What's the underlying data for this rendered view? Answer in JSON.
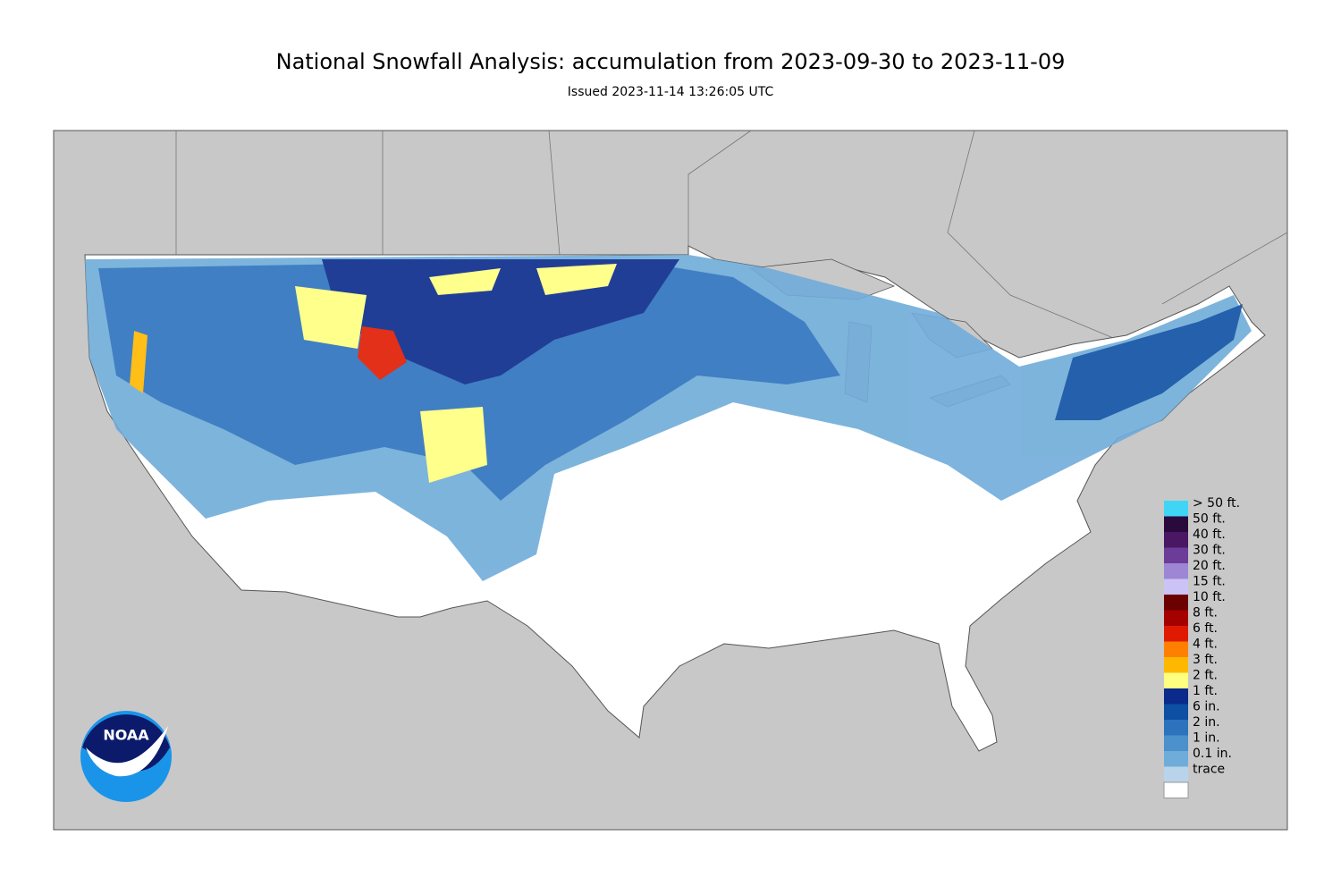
{
  "header": {
    "title": "National Snowfall Analysis: accumulation from 2023-09-30 to 2023-11-09",
    "subtitle": "Issued 2023-11-14 13:26:05 UTC"
  },
  "legend": [
    {
      "label": "> 50 ft.",
      "color": "#3fd6f6"
    },
    {
      "label": "50 ft.",
      "color": "#2a0a3c"
    },
    {
      "label": "40 ft.",
      "color": "#4a1764"
    },
    {
      "label": "30 ft.",
      "color": "#6b3c98"
    },
    {
      "label": "20 ft.",
      "color": "#9d86d4"
    },
    {
      "label": "15 ft.",
      "color": "#cbc3f5"
    },
    {
      "label": "10 ft.",
      "color": "#6b0000"
    },
    {
      "label": "8 ft.",
      "color": "#a50000"
    },
    {
      "label": "6 ft.",
      "color": "#e01a00"
    },
    {
      "label": "4 ft.",
      "color": "#ff7f00"
    },
    {
      "label": "3 ft.",
      "color": "#ffb800"
    },
    {
      "label": "2 ft.",
      "color": "#ffff80"
    },
    {
      "label": "1 ft.",
      "color": "#0a2a8c"
    },
    {
      "label": "6 in.",
      "color": "#0d4fa3"
    },
    {
      "label": "2 in.",
      "color": "#2c72bd"
    },
    {
      "label": "1 in.",
      "color": "#4b91cc"
    },
    {
      "label": "0.1 in.",
      "color": "#70acd9"
    },
    {
      "label": "trace",
      "color": "#b9d4ea"
    }
  ],
  "logo": "NOAA"
}
